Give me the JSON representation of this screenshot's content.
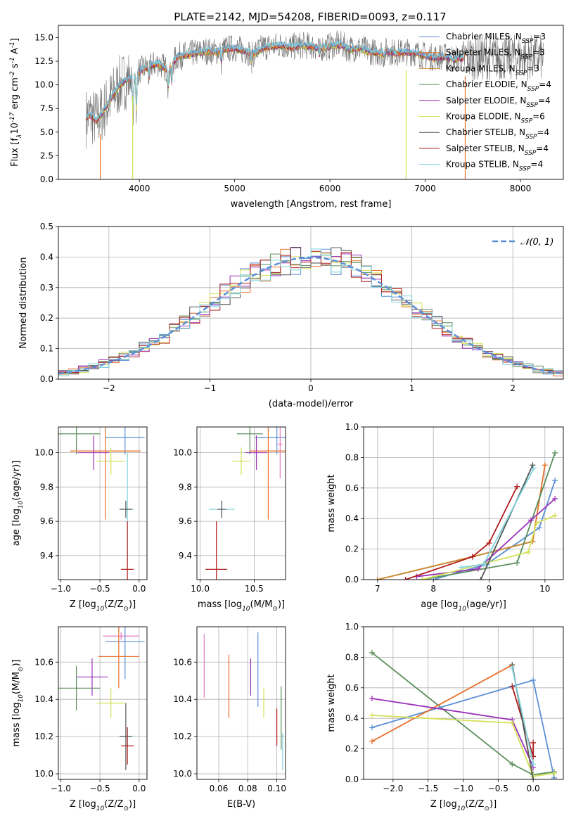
{
  "figure_title": "PLATE=2142, MJD=54208, FIBERID=0093, z=0.117",
  "colors": {
    "Chabrier MILES": "#5b8fd6",
    "Salpeter MILES": "#e8702a",
    "Kroupa MILES": "#c88a30",
    "Chabrier ELODIE": "#5a8f5a",
    "Salpeter ELODIE": "#9b30b8",
    "Kroupa ELODIE": "#d4e157",
    "Chabrier STELIB": "#555555",
    "Salpeter STELIB": "#b01c1c",
    "Kroupa STELIB": "#7fd3dd",
    "hist_salpeter_elodie": "#9b30b8",
    "hist_kroupa_elodie": "#d4e157",
    "hist_kroupa_stelib": "#7fd3dd",
    "normal_curve": "#5b8fd6",
    "pink": "#e377c2",
    "gray": "#7f7f7f"
  },
  "chart_data": [
    {
      "id": "spectrum",
      "type": "line",
      "xlabel": "wavelength [Angstrom, rest frame]",
      "ylabel": "Flux [f$_λ$10$^{-17}$ erg cm$^{-2}$ s$^{-1}$ A$^{-1}$]",
      "xlim": [
        3150,
        8450
      ],
      "ylim": [
        0,
        16.3
      ],
      "xticks": [
        4000,
        5000,
        6000,
        7000,
        8000
      ],
      "yticks": [
        0.0,
        2.5,
        5.0,
        7.5,
        10.0,
        12.5,
        15.0
      ],
      "ytick_labels": [
        "0.0",
        "2.5",
        "5.0",
        "7.5",
        "10.0",
        "12.5",
        "15.0"
      ],
      "legend_position": "right",
      "legend": [
        {
          "label": "Chabrier MILES, N",
          "sub": "SSP",
          "tail": "=3",
          "color_key": "Chabrier MILES"
        },
        {
          "label": "Salpeter MILES, N",
          "sub": "SSP",
          "tail": "=3",
          "color_key": "Salpeter MILES"
        },
        {
          "label": "Kroupa MILES, N",
          "sub": "SSP",
          "tail": "=3",
          "color_key": "Kroupa MILES"
        },
        {
          "label": "Chabrier ELODIE, N",
          "sub": "SSP",
          "tail": "=4",
          "color_key": "Chabrier ELODIE"
        },
        {
          "label": "Salpeter ELODIE, N",
          "sub": "SSP",
          "tail": "=4",
          "color_key": "Salpeter ELODIE"
        },
        {
          "label": "Kroupa ELODIE, N",
          "sub": "SSP",
          "tail": "=6",
          "color_key": "Kroupa ELODIE"
        },
        {
          "label": "Chabrier STELIB, N",
          "sub": "SSP",
          "tail": "=4",
          "color_key": "Chabrier STELIB"
        },
        {
          "label": "Salpeter STELIB, N",
          "sub": "SSP",
          "tail": "=4",
          "color_key": "Salpeter STELIB"
        },
        {
          "label": "Kroupa STELIB, N",
          "sub": "SSP",
          "tail": "=4",
          "color_key": "Kroupa STELIB"
        }
      ],
      "anchors": [
        [
          3440,
          6.5
        ],
        [
          3480,
          6.8
        ],
        [
          3550,
          6.3
        ],
        [
          3620,
          7.2
        ],
        [
          3700,
          8.5
        ],
        [
          3780,
          9.8
        ],
        [
          3850,
          10.5
        ],
        [
          3930,
          10.8
        ],
        [
          4000,
          11.5
        ],
        [
          4100,
          12.0
        ],
        [
          4200,
          12.3
        ],
        [
          4300,
          11.6
        ],
        [
          4400,
          13.0
        ],
        [
          4500,
          13.2
        ],
        [
          4600,
          13.4
        ],
        [
          4700,
          13.6
        ],
        [
          4800,
          13.5
        ],
        [
          4900,
          13.8
        ],
        [
          5000,
          13.9
        ],
        [
          5100,
          13.6
        ],
        [
          5200,
          13.3
        ],
        [
          5300,
          14.0
        ],
        [
          5400,
          14.1
        ],
        [
          5500,
          14.2
        ],
        [
          5600,
          14.0
        ],
        [
          5700,
          14.2
        ],
        [
          5800,
          14.1
        ],
        [
          5900,
          13.9
        ],
        [
          6000,
          14.1
        ],
        [
          6100,
          14.3
        ],
        [
          6200,
          13.8
        ],
        [
          6300,
          13.9
        ],
        [
          6400,
          13.6
        ],
        [
          6500,
          13.4
        ],
        [
          6600,
          13.6
        ],
        [
          6700,
          13.4
        ],
        [
          6800,
          13.5
        ],
        [
          6900,
          13.4
        ],
        [
          7000,
          13.1
        ],
        [
          7100,
          12.9
        ],
        [
          7200,
          13.0
        ],
        [
          7300,
          12.7
        ],
        [
          7400,
          12.9
        ]
      ],
      "gray_extent": [
        3440,
        8240
      ],
      "dips": [
        [
          3934,
          4.5
        ],
        [
          3969,
          4.0
        ],
        [
          4102,
          1.5
        ],
        [
          4304,
          2.0
        ],
        [
          4340,
          2.0
        ],
        [
          4861,
          1.3
        ],
        [
          5175,
          1.0
        ],
        [
          5890,
          0.8
        ],
        [
          6563,
          0.5
        ]
      ],
      "drops": [
        {
          "x": 3590,
          "color_key": "Salpeter MILES"
        },
        {
          "x": 3930,
          "color_key": "Kroupa ELODIE"
        },
        {
          "x": 6800,
          "color_key": "Kroupa ELODIE"
        },
        {
          "x": 7420,
          "color_key": "Salpeter MILES"
        }
      ]
    },
    {
      "id": "residual_hist",
      "type": "bar",
      "xlabel": "(data-model)/error",
      "ylabel": "Normed distribution",
      "xlim": [
        -2.5,
        2.5
      ],
      "ylim": [
        0,
        0.5
      ],
      "xticks": [
        -2,
        -1,
        0,
        1,
        2
      ],
      "xtick_labels": [
        "−2",
        "−1",
        "0",
        "1",
        "2"
      ],
      "yticks": [
        0.0,
        0.1,
        0.2,
        0.3,
        0.4,
        0.5
      ],
      "ytick_labels": [
        "0.0",
        "0.1",
        "0.2",
        "0.3",
        "0.4",
        "0.5"
      ],
      "legend_position": "top-right",
      "curve_label": "𝒩(0, 1)",
      "bin_width": 0.1
    },
    {
      "id": "age_vs_Z",
      "type": "scatter",
      "xlabel": "Z [log$_{10}$(Z/Z$_⊙$)]",
      "ylabel": "age  [log$_{10}$(age/yr)]",
      "xlim": [
        -1.03,
        0.1
      ],
      "ylim": [
        9.26,
        10.15
      ],
      "xticks": [
        -1.0,
        -0.5,
        0.0
      ],
      "xtick_labels": [
        "−1.0",
        "−0.5",
        "0.0"
      ],
      "yticks": [
        9.4,
        9.6,
        9.8,
        10.0
      ],
      "ytick_labels": [
        "9.4",
        "9.6",
        "9.8",
        "10.0"
      ],
      "points": [
        {
          "color_key": "Chabrier ELODIE",
          "x": -0.8,
          "y": 10.11,
          "xerr": 0.3,
          "yerr": 0.12
        },
        {
          "color_key": "Chabrier MILES",
          "x": -0.18,
          "y": 10.09,
          "xerr": 0.25,
          "yerr": 0.1
        },
        {
          "color_key": "Salpeter MILES",
          "x": -0.43,
          "y": 10.01,
          "xerr": 0.45,
          "yerr": 0.4
        },
        {
          "color_key": "Salpeter ELODIE",
          "x": -0.58,
          "y": 10.0,
          "xerr": 0.2,
          "yerr": 0.1
        },
        {
          "color_key": "Kroupa ELODIE",
          "x": -0.36,
          "y": 9.95,
          "xerr": 0.18,
          "yerr": 0.08
        },
        {
          "color_key": "Kroupa STELIB",
          "x": -0.15,
          "y": 9.67,
          "xerr": 0.08,
          "yerr": 0.33
        },
        {
          "color_key": "Chabrier STELIB",
          "x": -0.17,
          "y": 9.67,
          "xerr": 0.08,
          "yerr": 0.05
        },
        {
          "color_key": "Salpeter STELIB",
          "x": -0.15,
          "y": 9.32,
          "xerr": 0.08,
          "yerr": 0.28
        }
      ]
    },
    {
      "id": "age_vs_mass",
      "type": "scatter",
      "xlabel": "mass [log$_{10}$(M/M$_⊙$)]",
      "xlim": [
        9.97,
        10.79
      ],
      "ylim": [
        9.26,
        10.15
      ],
      "xticks": [
        10.0,
        10.5
      ],
      "xtick_labels": [
        "10.0",
        "10.5"
      ],
      "yticks": [
        9.4,
        9.6,
        9.8,
        10.0
      ],
      "ytick_labels": [
        "9.4",
        "9.6",
        "9.8",
        "10.0"
      ],
      "points": [
        {
          "color_key": "Chabrier ELODIE",
          "x": 10.46,
          "y": 10.11,
          "xerr": 0.12,
          "yerr": 0.12
        },
        {
          "color_key": "Chabrier MILES",
          "x": 10.71,
          "y": 10.09,
          "xerr": 0.2,
          "yerr": 0.1
        },
        {
          "color_key": "pink",
          "x": 10.74,
          "y": 10.05,
          "xerr": 0.02,
          "yerr": 0.2
        },
        {
          "color_key": "Salpeter MILES",
          "x": 10.63,
          "y": 10.01,
          "xerr": 0.17,
          "yerr": 0.4
        },
        {
          "color_key": "Salpeter ELODIE",
          "x": 10.52,
          "y": 10.0,
          "xerr": 0.1,
          "yerr": 0.1
        },
        {
          "color_key": "Kroupa ELODIE",
          "x": 10.38,
          "y": 9.95,
          "xerr": 0.08,
          "yerr": 0.08
        },
        {
          "color_key": "Kroupa STELIB",
          "x": 10.2,
          "y": 9.67,
          "xerr": 0.12,
          "yerr": 0.05
        },
        {
          "color_key": "Chabrier STELIB",
          "x": 10.2,
          "y": 9.67,
          "xerr": 0.04,
          "yerr": 0.05
        },
        {
          "color_key": "Salpeter STELIB",
          "x": 10.15,
          "y": 9.32,
          "xerr": 0.1,
          "yerr": 0.28
        }
      ]
    },
    {
      "id": "weight_vs_age",
      "type": "line",
      "xlabel": "age  [log$_{10}$(age/yr)]",
      "ylabel": "mass weight",
      "xlim": [
        6.75,
        10.33
      ],
      "ylim": [
        0,
        1.0
      ],
      "xticks": [
        7,
        8,
        9,
        10
      ],
      "xtick_labels": [
        "7",
        "8",
        "9",
        "10"
      ],
      "yticks": [
        0.0,
        0.2,
        0.4,
        0.6,
        0.8,
        1.0
      ],
      "ytick_labels": [
        "0.0",
        "0.2",
        "0.4",
        "0.6",
        "0.8",
        "1.0"
      ],
      "series": [
        {
          "color_key": "Chabrier MILES",
          "x": [
            8.0,
            8.95,
            9.9,
            10.18
          ],
          "y": [
            0.0,
            0.1,
            0.34,
            0.65
          ]
        },
        {
          "color_key": "Salpeter MILES",
          "x": [
            7.0,
            8.7,
            9.78,
            10.0
          ],
          "y": [
            0.0,
            0.15,
            0.25,
            0.75
          ]
        },
        {
          "color_key": "Kroupa MILES",
          "x": [
            7.0,
            8.7,
            9.78
          ],
          "y": [
            0.0,
            0.15,
            0.25
          ]
        },
        {
          "color_key": "Chabrier ELODIE",
          "x": [
            7.8,
            9.5,
            10.18
          ],
          "y": [
            0.0,
            0.11,
            0.83
          ]
        },
        {
          "color_key": "Salpeter ELODIE",
          "x": [
            7.7,
            8.8,
            9.75,
            10.18
          ],
          "y": [
            0.02,
            0.07,
            0.39,
            0.53
          ]
        },
        {
          "color_key": "Kroupa ELODIE",
          "x": [
            7.8,
            9.7,
            9.85,
            10.18
          ],
          "y": [
            0.0,
            0.18,
            0.37,
            0.42
          ]
        },
        {
          "color_key": "Chabrier STELIB",
          "x": [
            8.85,
            9.78
          ],
          "y": [
            0.0,
            0.75
          ]
        },
        {
          "color_key": "Salpeter STELIB",
          "x": [
            7.5,
            8.7,
            9.0,
            9.5
          ],
          "y": [
            0.0,
            0.15,
            0.24,
            0.61
          ]
        },
        {
          "color_key": "Kroupa STELIB",
          "x": [
            8.5,
            8.9,
            9.8
          ],
          "y": [
            0.08,
            0.1,
            0.73
          ]
        }
      ]
    },
    {
      "id": "mass_vs_Z",
      "type": "scatter",
      "xlabel": "Z [log$_{10}$(Z/Z$_⊙$)]",
      "ylabel": "mass [log$_{10}$(M/M$_⊙$)]",
      "xlim": [
        -1.03,
        0.1
      ],
      "ylim": [
        9.97,
        10.79
      ],
      "xticks": [
        -1.0,
        -0.5,
        0.0
      ],
      "xtick_labels": [
        "−1.0",
        "−0.5",
        "0.0"
      ],
      "yticks": [
        10.0,
        10.2,
        10.4,
        10.6
      ],
      "ytick_labels": [
        "10.0",
        "10.2",
        "10.4",
        "10.6"
      ],
      "points": [
        {
          "color_key": "pink",
          "x": -0.23,
          "y": 10.74,
          "xerr": 0.23,
          "yerr": 0.02
        },
        {
          "color_key": "Chabrier MILES",
          "x": -0.18,
          "y": 10.71,
          "xerr": 0.25,
          "yerr": 0.2
        },
        {
          "color_key": "Salpeter MILES",
          "x": -0.26,
          "y": 10.63,
          "xerr": 0.26,
          "yerr": 0.17
        },
        {
          "color_key": "Salpeter ELODIE",
          "x": -0.6,
          "y": 10.52,
          "xerr": 0.2,
          "yerr": 0.1
        },
        {
          "color_key": "Chabrier ELODIE",
          "x": -0.8,
          "y": 10.46,
          "xerr": 0.3,
          "yerr": 0.12
        },
        {
          "color_key": "Kroupa ELODIE",
          "x": -0.36,
          "y": 10.38,
          "xerr": 0.18,
          "yerr": 0.08
        },
        {
          "color_key": "Kroupa STELIB",
          "x": -0.15,
          "y": 10.2,
          "xerr": 0.08,
          "yerr": 0.05
        },
        {
          "color_key": "Chabrier STELIB",
          "x": -0.17,
          "y": 10.2,
          "xerr": 0.08,
          "yerr": 0.18
        },
        {
          "color_key": "Salpeter STELIB",
          "x": -0.15,
          "y": 10.15,
          "xerr": 0.08,
          "yerr": 0.1
        }
      ]
    },
    {
      "id": "mass_vs_ebv",
      "type": "scatter",
      "xlabel": "E(B-V)",
      "xlim": [
        0.045,
        0.106
      ],
      "ylim": [
        9.97,
        10.79
      ],
      "xticks": [
        0.06,
        0.08,
        0.1
      ],
      "xtick_labels": [
        "0.06",
        "0.08",
        "0.10"
      ],
      "yticks": [
        10.0,
        10.2,
        10.4,
        10.6
      ],
      "ytick_labels": [
        "10.0",
        "10.2",
        "10.4",
        "10.6"
      ],
      "points": [
        {
          "color_key": "pink",
          "x": 0.05,
          "y": 10.58,
          "xerr": 0,
          "yerr": 0.17
        },
        {
          "color_key": "Salpeter MILES",
          "x": 0.067,
          "y": 10.47,
          "xerr": 0,
          "yerr": 0.17
        },
        {
          "color_key": "Salpeter ELODIE",
          "x": 0.082,
          "y": 10.52,
          "xerr": 0,
          "yerr": 0.1
        },
        {
          "color_key": "Chabrier MILES",
          "x": 0.087,
          "y": 10.56,
          "xerr": 0,
          "yerr": 0.2
        },
        {
          "color_key": "Kroupa ELODIE",
          "x": 0.091,
          "y": 10.38,
          "xerr": 0,
          "yerr": 0.08
        },
        {
          "color_key": "Salpeter STELIB",
          "x": 0.1,
          "y": 10.25,
          "xerr": 0,
          "yerr": 0.1
        },
        {
          "color_key": "Chabrier ELODIE",
          "x": 0.103,
          "y": 10.3,
          "xerr": 0,
          "yerr": 0.17
        },
        {
          "color_key": "Kroupa STELIB",
          "x": 0.104,
          "y": 10.12,
          "xerr": 0,
          "yerr": 0.1
        }
      ]
    },
    {
      "id": "weight_vs_Z",
      "type": "line",
      "xlabel": "Z [log$_{10}$(Z/Z$_⊙$)]",
      "ylabel": "mass weight",
      "xlim": [
        -2.42,
        0.43
      ],
      "ylim": [
        0,
        1.0
      ],
      "xticks": [
        -2.0,
        -1.5,
        -1.0,
        -0.5,
        0.0
      ],
      "xtick_labels": [
        "−2.0",
        "−1.5",
        "−1.0",
        "−0.5",
        "0.0"
      ],
      "yticks": [
        0.0,
        0.2,
        0.4,
        0.6,
        0.8,
        1.0
      ],
      "ytick_labels": [
        "0.0",
        "0.2",
        "0.4",
        "0.6",
        "0.8",
        "1.0"
      ],
      "series": [
        {
          "color_key": "Chabrier ELODIE",
          "x": [
            -2.3,
            -0.3,
            0.0,
            0.3
          ],
          "y": [
            0.83,
            0.1,
            0.03,
            0.05
          ]
        },
        {
          "color_key": "Chabrier MILES",
          "x": [
            -2.3,
            -0.3,
            0.0,
            0.3
          ],
          "y": [
            0.34,
            0.61,
            0.65,
            0.01
          ]
        },
        {
          "color_key": "Salpeter MILES",
          "x": [
            -2.3,
            -0.3,
            0.0
          ],
          "y": [
            0.25,
            0.75,
            0.0
          ]
        },
        {
          "color_key": "Salpeter ELODIE",
          "x": [
            -2.3,
            -0.3,
            0.0
          ],
          "y": [
            0.53,
            0.39,
            0.08
          ]
        },
        {
          "color_key": "Kroupa ELODIE",
          "x": [
            -2.3,
            -0.3,
            0.0,
            0.3
          ],
          "y": [
            0.42,
            0.37,
            0.02,
            0.04
          ]
        },
        {
          "color_key": "Salpeter STELIB",
          "x": [
            -0.3,
            0.0,
            0.0
          ],
          "y": [
            0.61,
            0.15,
            0.24
          ]
        },
        {
          "color_key": "Chabrier STELIB",
          "x": [
            -0.3,
            0.0
          ],
          "y": [
            0.75,
            0.0
          ]
        },
        {
          "color_key": "Kroupa STELIB",
          "x": [
            -0.3,
            0.0
          ],
          "y": [
            0.73,
            0.1
          ]
        }
      ]
    }
  ]
}
